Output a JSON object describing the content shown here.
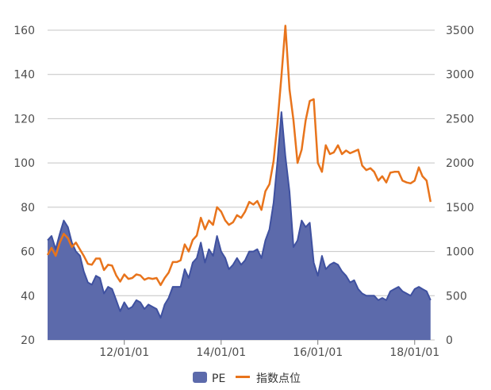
{
  "chart_data": {
    "type": "area",
    "x_tick_labels": [
      "12/01/01",
      "14/01/01",
      "16/01/01",
      "18/01/01"
    ],
    "x_tick_dates": [
      "2012-01-01",
      "2014-01-01",
      "2016-01-01",
      "2018-01-01"
    ],
    "x_range": [
      "2010-06-01",
      "2018-06-01"
    ],
    "y_left": {
      "range": [
        20,
        160
      ],
      "ticks": [
        20,
        40,
        60,
        80,
        100,
        120,
        140,
        160
      ]
    },
    "y_right": {
      "range": [
        0,
        3500
      ],
      "ticks": [
        0,
        500,
        1000,
        1500,
        2000,
        2500,
        3000,
        3500
      ]
    },
    "grid": true,
    "legend_position": "bottom-center",
    "series": [
      {
        "name": "PE",
        "axis": "left",
        "kind": "area",
        "color": "#3f51a0",
        "fill": "#5c6aab",
        "points": [
          [
            "2010-06-01",
            65
          ],
          [
            "2010-07-01",
            67
          ],
          [
            "2010-08-01",
            61
          ],
          [
            "2010-09-01",
            68
          ],
          [
            "2010-10-01",
            74
          ],
          [
            "2010-11-01",
            71
          ],
          [
            "2010-12-01",
            64
          ],
          [
            "2011-01-01",
            60
          ],
          [
            "2011-02-01",
            58
          ],
          [
            "2011-03-01",
            51
          ],
          [
            "2011-04-01",
            46
          ],
          [
            "2011-05-01",
            45
          ],
          [
            "2011-06-01",
            49
          ],
          [
            "2011-07-01",
            48
          ],
          [
            "2011-08-01",
            41
          ],
          [
            "2011-09-01",
            44
          ],
          [
            "2011-10-01",
            43
          ],
          [
            "2011-11-01",
            38
          ],
          [
            "2011-12-01",
            33
          ],
          [
            "2012-01-01",
            37
          ],
          [
            "2012-02-01",
            34
          ],
          [
            "2012-03-01",
            35
          ],
          [
            "2012-04-01",
            38
          ],
          [
            "2012-05-01",
            37
          ],
          [
            "2012-06-01",
            34
          ],
          [
            "2012-07-01",
            36
          ],
          [
            "2012-08-01",
            35
          ],
          [
            "2012-09-01",
            34
          ],
          [
            "2012-10-01",
            30
          ],
          [
            "2012-11-01",
            36
          ],
          [
            "2012-12-01",
            39
          ],
          [
            "2013-01-01",
            44
          ],
          [
            "2013-02-01",
            44
          ],
          [
            "2013-03-01",
            44
          ],
          [
            "2013-04-01",
            52
          ],
          [
            "2013-05-01",
            48
          ],
          [
            "2013-06-01",
            55
          ],
          [
            "2013-07-01",
            57
          ],
          [
            "2013-08-01",
            64
          ],
          [
            "2013-09-01",
            55
          ],
          [
            "2013-10-01",
            61
          ],
          [
            "2013-11-01",
            58
          ],
          [
            "2013-12-01",
            67
          ],
          [
            "2014-01-01",
            60
          ],
          [
            "2014-02-01",
            57
          ],
          [
            "2014-03-01",
            52
          ],
          [
            "2014-04-01",
            54
          ],
          [
            "2014-05-01",
            57
          ],
          [
            "2014-06-01",
            54
          ],
          [
            "2014-07-01",
            56
          ],
          [
            "2014-08-01",
            60
          ],
          [
            "2014-09-01",
            60
          ],
          [
            "2014-10-01",
            61
          ],
          [
            "2014-11-01",
            57
          ],
          [
            "2014-12-01",
            65
          ],
          [
            "2015-01-01",
            70
          ],
          [
            "2015-02-01",
            82
          ],
          [
            "2015-03-01",
            100
          ],
          [
            "2015-04-01",
            123
          ],
          [
            "2015-05-01",
            103
          ],
          [
            "2015-06-01",
            87
          ],
          [
            "2015-07-01",
            62
          ],
          [
            "2015-08-01",
            65
          ],
          [
            "2015-09-01",
            74
          ],
          [
            "2015-10-01",
            71
          ],
          [
            "2015-11-01",
            73
          ],
          [
            "2015-12-01",
            55
          ],
          [
            "2016-01-01",
            49
          ],
          [
            "2016-02-01",
            58
          ],
          [
            "2016-03-01",
            52
          ],
          [
            "2016-04-01",
            54
          ],
          [
            "2016-05-01",
            55
          ],
          [
            "2016-06-01",
            54
          ],
          [
            "2016-07-01",
            51
          ],
          [
            "2016-08-01",
            49
          ],
          [
            "2016-09-01",
            46
          ],
          [
            "2016-10-01",
            47
          ],
          [
            "2016-11-01",
            43
          ],
          [
            "2016-12-01",
            41
          ],
          [
            "2017-01-01",
            40
          ],
          [
            "2017-02-01",
            40
          ],
          [
            "2017-03-01",
            40
          ],
          [
            "2017-04-01",
            38
          ],
          [
            "2017-05-01",
            39
          ],
          [
            "2017-06-01",
            38
          ],
          [
            "2017-07-01",
            42
          ],
          [
            "2017-08-01",
            43
          ],
          [
            "2017-09-01",
            44
          ],
          [
            "2017-10-01",
            42
          ],
          [
            "2017-11-01",
            41
          ],
          [
            "2017-12-01",
            40
          ],
          [
            "2018-01-01",
            43
          ],
          [
            "2018-02-01",
            44
          ],
          [
            "2018-03-01",
            43
          ],
          [
            "2018-04-01",
            42
          ],
          [
            "2018-05-01",
            38
          ]
        ]
      },
      {
        "name": "指数点位",
        "axis": "right",
        "kind": "line",
        "color": "#e8741c",
        "points": [
          [
            "2010-06-01",
            960
          ],
          [
            "2010-07-01",
            1040
          ],
          [
            "2010-08-01",
            950
          ],
          [
            "2010-09-01",
            1100
          ],
          [
            "2010-10-01",
            1200
          ],
          [
            "2010-11-01",
            1150
          ],
          [
            "2010-12-01",
            1050
          ],
          [
            "2011-01-01",
            1100
          ],
          [
            "2011-02-01",
            1020
          ],
          [
            "2011-03-01",
            950
          ],
          [
            "2011-04-01",
            860
          ],
          [
            "2011-05-01",
            850
          ],
          [
            "2011-06-01",
            920
          ],
          [
            "2011-07-01",
            920
          ],
          [
            "2011-08-01",
            790
          ],
          [
            "2011-09-01",
            850
          ],
          [
            "2011-10-01",
            840
          ],
          [
            "2011-11-01",
            730
          ],
          [
            "2011-12-01",
            660
          ],
          [
            "2012-01-01",
            740
          ],
          [
            "2012-02-01",
            690
          ],
          [
            "2012-03-01",
            700
          ],
          [
            "2012-04-01",
            740
          ],
          [
            "2012-05-01",
            730
          ],
          [
            "2012-06-01",
            680
          ],
          [
            "2012-07-01",
            700
          ],
          [
            "2012-08-01",
            690
          ],
          [
            "2012-09-01",
            700
          ],
          [
            "2012-10-01",
            620
          ],
          [
            "2012-11-01",
            700
          ],
          [
            "2012-12-01",
            760
          ],
          [
            "2013-01-01",
            880
          ],
          [
            "2013-02-01",
            880
          ],
          [
            "2013-03-01",
            900
          ],
          [
            "2013-04-01",
            1080
          ],
          [
            "2013-05-01",
            1000
          ],
          [
            "2013-06-01",
            1130
          ],
          [
            "2013-07-01",
            1180
          ],
          [
            "2013-08-01",
            1380
          ],
          [
            "2013-09-01",
            1250
          ],
          [
            "2013-10-01",
            1350
          ],
          [
            "2013-11-01",
            1300
          ],
          [
            "2013-12-01",
            1500
          ],
          [
            "2014-01-01",
            1450
          ],
          [
            "2014-02-01",
            1350
          ],
          [
            "2014-03-01",
            1300
          ],
          [
            "2014-04-01",
            1330
          ],
          [
            "2014-05-01",
            1410
          ],
          [
            "2014-06-01",
            1380
          ],
          [
            "2014-07-01",
            1450
          ],
          [
            "2014-08-01",
            1560
          ],
          [
            "2014-09-01",
            1530
          ],
          [
            "2014-10-01",
            1570
          ],
          [
            "2014-11-01",
            1470
          ],
          [
            "2014-12-01",
            1680
          ],
          [
            "2015-01-01",
            1760
          ],
          [
            "2015-02-01",
            2020
          ],
          [
            "2015-03-01",
            2430
          ],
          [
            "2015-04-01",
            2980
          ],
          [
            "2015-05-01",
            3550
          ],
          [
            "2015-06-01",
            2830
          ],
          [
            "2015-07-01",
            2480
          ],
          [
            "2015-08-01",
            2000
          ],
          [
            "2015-09-01",
            2150
          ],
          [
            "2015-10-01",
            2480
          ],
          [
            "2015-11-01",
            2700
          ],
          [
            "2015-12-01",
            2720
          ],
          [
            "2016-01-01",
            2000
          ],
          [
            "2016-02-01",
            1900
          ],
          [
            "2016-03-01",
            2200
          ],
          [
            "2016-04-01",
            2100
          ],
          [
            "2016-05-01",
            2120
          ],
          [
            "2016-06-01",
            2200
          ],
          [
            "2016-07-01",
            2100
          ],
          [
            "2016-08-01",
            2140
          ],
          [
            "2016-09-01",
            2110
          ],
          [
            "2016-10-01",
            2130
          ],
          [
            "2016-11-01",
            2150
          ],
          [
            "2016-12-01",
            1970
          ],
          [
            "2017-01-01",
            1920
          ],
          [
            "2017-02-01",
            1940
          ],
          [
            "2017-03-01",
            1900
          ],
          [
            "2017-04-01",
            1800
          ],
          [
            "2017-05-01",
            1850
          ],
          [
            "2017-06-01",
            1780
          ],
          [
            "2017-07-01",
            1890
          ],
          [
            "2017-08-01",
            1900
          ],
          [
            "2017-09-01",
            1900
          ],
          [
            "2017-10-01",
            1800
          ],
          [
            "2017-11-01",
            1780
          ],
          [
            "2017-12-01",
            1770
          ],
          [
            "2018-01-01",
            1800
          ],
          [
            "2018-02-01",
            1950
          ],
          [
            "2018-03-01",
            1850
          ],
          [
            "2018-04-01",
            1800
          ],
          [
            "2018-05-01",
            1560
          ]
        ]
      }
    ]
  }
}
